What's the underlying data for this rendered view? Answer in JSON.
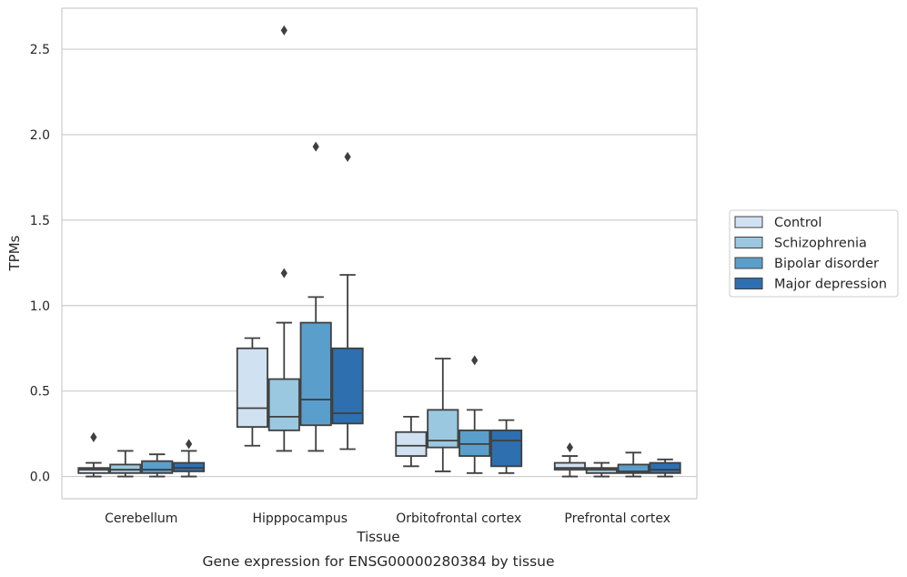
{
  "chart_data": {
    "type": "boxplot",
    "categories": [
      "Cerebellum",
      "Hipppocampus",
      "Orbitofrontal cortex",
      "Prefrontal cortex"
    ],
    "series": [
      {
        "name": "Control",
        "color": "#d0e1f2",
        "boxes": [
          {
            "whisker_low": 0.0,
            "q1": 0.02,
            "median": 0.04,
            "q3": 0.05,
            "whisker_high": 0.08,
            "outliers": [
              0.23
            ]
          },
          {
            "whisker_low": 0.18,
            "q1": 0.29,
            "median": 0.4,
            "q3": 0.75,
            "whisker_high": 0.81,
            "outliers": []
          },
          {
            "whisker_low": 0.06,
            "q1": 0.12,
            "median": 0.18,
            "q3": 0.26,
            "whisker_high": 0.35,
            "outliers": []
          },
          {
            "whisker_low": 0.0,
            "q1": 0.04,
            "median": 0.05,
            "q3": 0.08,
            "whisker_high": 0.12,
            "outliers": [
              0.17
            ]
          }
        ]
      },
      {
        "name": "Schizophrenia",
        "color": "#9ac8e0",
        "boxes": [
          {
            "whisker_low": 0.0,
            "q1": 0.02,
            "median": 0.04,
            "q3": 0.07,
            "whisker_high": 0.15,
            "outliers": []
          },
          {
            "whisker_low": 0.15,
            "q1": 0.27,
            "median": 0.35,
            "q3": 0.57,
            "whisker_high": 0.9,
            "outliers": [
              1.19,
              2.61
            ]
          },
          {
            "whisker_low": 0.03,
            "q1": 0.17,
            "median": 0.21,
            "q3": 0.39,
            "whisker_high": 0.69,
            "outliers": []
          },
          {
            "whisker_low": 0.0,
            "q1": 0.02,
            "median": 0.04,
            "q3": 0.05,
            "whisker_high": 0.08,
            "outliers": []
          }
        ]
      },
      {
        "name": "Bipolar disorder",
        "color": "#5a9fcb",
        "boxes": [
          {
            "whisker_low": 0.0,
            "q1": 0.02,
            "median": 0.04,
            "q3": 0.09,
            "whisker_high": 0.13,
            "outliers": []
          },
          {
            "whisker_low": 0.15,
            "q1": 0.3,
            "median": 0.45,
            "q3": 0.9,
            "whisker_high": 1.05,
            "outliers": [
              1.93
            ]
          },
          {
            "whisker_low": 0.02,
            "q1": 0.12,
            "median": 0.19,
            "q3": 0.27,
            "whisker_high": 0.39,
            "outliers": [
              0.68
            ]
          },
          {
            "whisker_low": 0.0,
            "q1": 0.02,
            "median": 0.03,
            "q3": 0.07,
            "whisker_high": 0.14,
            "outliers": []
          }
        ]
      },
      {
        "name": "Major depression",
        "color": "#2e6faf",
        "boxes": [
          {
            "whisker_low": 0.0,
            "q1": 0.03,
            "median": 0.05,
            "q3": 0.08,
            "whisker_high": 0.15,
            "outliers": [
              0.19
            ]
          },
          {
            "whisker_low": 0.16,
            "q1": 0.31,
            "median": 0.37,
            "q3": 0.75,
            "whisker_high": 1.18,
            "outliers": [
              1.87
            ]
          },
          {
            "whisker_low": 0.02,
            "q1": 0.06,
            "median": 0.21,
            "q3": 0.27,
            "whisker_high": 0.33,
            "outliers": []
          },
          {
            "whisker_low": 0.0,
            "q1": 0.02,
            "median": 0.04,
            "q3": 0.08,
            "whisker_high": 0.1,
            "outliers": []
          }
        ]
      }
    ],
    "yticks": [
      0.0,
      0.5,
      1.0,
      1.5,
      2.0,
      2.5
    ],
    "ytick_labels": [
      "0.0",
      "0.5",
      "1.0",
      "1.5",
      "2.0",
      "2.5"
    ],
    "ylim": [
      -0.13,
      2.74
    ],
    "xlabel": "Tissue",
    "ylabel": "TPMs",
    "caption": "Gene expression for ENSG00000280384 by tissue",
    "legend_position": "outside-right",
    "grid": "horizontal",
    "colors": {
      "grid": "#cccccc",
      "frame": "#cccccc",
      "line": "#3f3f3f"
    }
  }
}
